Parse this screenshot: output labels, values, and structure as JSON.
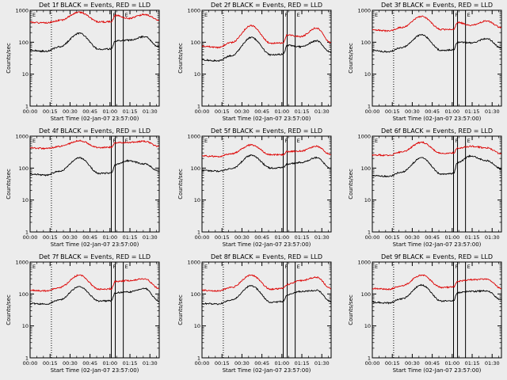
{
  "figure": {
    "x_axis_title": "Start Time (02-Jan-07 23:57:00)",
    "y_axis_title": "Counts/sec",
    "x_tick_labels": [
      "00:00",
      "00:15",
      "00:30",
      "00:45",
      "01:00",
      "01:15",
      "01:30"
    ],
    "y_tick_labels": [
      "1",
      "10",
      "100",
      "1000"
    ],
    "flag_labels": [
      "E",
      "F",
      "E"
    ]
  },
  "chart_data": [
    {
      "type": "line",
      "title": "Det 1f BLACK = Events, RED = LLD",
      "x": [
        0,
        12,
        22,
        37,
        52,
        61,
        64,
        74,
        86,
        97
      ],
      "xlim": [
        0,
        97
      ],
      "ylim": [
        1,
        1000
      ],
      "yscale": "log",
      "vlines": [
        16,
        61,
        64,
        70
      ],
      "series": [
        {
          "name": "Events",
          "color": "#000000",
          "values": [
            55,
            52,
            72,
            190,
            60,
            62,
            110,
            115,
            150,
            70
          ]
        },
        {
          "name": "LLD",
          "color": "#dd0000",
          "values": [
            420,
            400,
            480,
            870,
            430,
            440,
            700,
            560,
            740,
            500
          ]
        }
      ]
    },
    {
      "type": "line",
      "title": "Det 2f BLACK = Events, RED = LLD",
      "x": [
        0,
        12,
        22,
        37,
        52,
        61,
        64,
        74,
        86,
        97
      ],
      "xlim": [
        0,
        97
      ],
      "ylim": [
        1,
        1000
      ],
      "yscale": "log",
      "vlines": [
        16,
        61,
        64,
        70
      ],
      "series": [
        {
          "name": "Events",
          "color": "#000000",
          "values": [
            28,
            26,
            38,
            140,
            40,
            42,
            80,
            72,
            110,
            48
          ]
        },
        {
          "name": "LLD",
          "color": "#dd0000",
          "values": [
            75,
            68,
            98,
            330,
            92,
            96,
            170,
            150,
            280,
            95
          ]
        }
      ]
    },
    {
      "type": "line",
      "title": "Det 3f BLACK = Events, RED = LLD",
      "x": [
        0,
        12,
        22,
        37,
        52,
        61,
        64,
        74,
        86,
        97
      ],
      "xlim": [
        0,
        97
      ],
      "ylim": [
        1,
        1000
      ],
      "yscale": "log",
      "vlines": [
        16,
        61,
        64,
        70
      ],
      "series": [
        {
          "name": "Events",
          "color": "#000000",
          "values": [
            55,
            50,
            68,
            170,
            55,
            58,
            100,
            95,
            130,
            65
          ]
        },
        {
          "name": "LLD",
          "color": "#dd0000",
          "values": [
            240,
            225,
            290,
            640,
            250,
            255,
            420,
            340,
            460,
            290
          ]
        }
      ]
    },
    {
      "type": "line",
      "title": "Det 4f BLACK = Events, RED = LLD",
      "x": [
        0,
        12,
        22,
        37,
        52,
        61,
        64,
        74,
        86,
        97
      ],
      "xlim": [
        0,
        97
      ],
      "ylim": [
        1,
        1000
      ],
      "yscale": "log",
      "vlines": [
        16,
        61,
        64,
        70
      ],
      "series": [
        {
          "name": "Events",
          "color": "#000000",
          "values": [
            65,
            60,
            80,
            210,
            68,
            70,
            130,
            170,
            135,
            80
          ]
        },
        {
          "name": "LLD",
          "color": "#dd0000",
          "values": [
            430,
            410,
            480,
            720,
            440,
            450,
            620,
            640,
            690,
            470
          ]
        }
      ]
    },
    {
      "type": "line",
      "title": "Det 5f BLACK = Events, RED = LLD",
      "x": [
        0,
        12,
        22,
        37,
        52,
        61,
        64,
        74,
        86,
        97
      ],
      "xlim": [
        0,
        97
      ],
      "ylim": [
        1,
        1000
      ],
      "yscale": "log",
      "vlines": [
        16,
        61,
        64,
        70
      ],
      "series": [
        {
          "name": "Events",
          "color": "#000000",
          "values": [
            85,
            80,
            95,
            250,
            100,
            105,
            135,
            150,
            210,
            100
          ]
        },
        {
          "name": "LLD",
          "color": "#dd0000",
          "values": [
            240,
            230,
            280,
            530,
            260,
            265,
            330,
            340,
            480,
            260
          ]
        }
      ]
    },
    {
      "type": "line",
      "title": "Det 6f BLACK = Events, RED = LLD",
      "x": [
        0,
        12,
        22,
        37,
        52,
        61,
        64,
        74,
        86,
        97
      ],
      "xlim": [
        0,
        97
      ],
      "ylim": [
        1,
        1000
      ],
      "yscale": "log",
      "vlines": [
        16,
        61,
        64,
        70
      ],
      "series": [
        {
          "name": "Events",
          "color": "#000000",
          "values": [
            58,
            55,
            75,
            210,
            65,
            68,
            150,
            240,
            170,
            95
          ]
        },
        {
          "name": "LLD",
          "color": "#dd0000",
          "values": [
            260,
            250,
            320,
            640,
            290,
            300,
            420,
            480,
            430,
            280
          ]
        }
      ]
    },
    {
      "type": "line",
      "title": "Det 7f BLACK = Events, RED = LLD",
      "x": [
        0,
        12,
        22,
        37,
        52,
        61,
        64,
        74,
        86,
        97
      ],
      "xlim": [
        0,
        97
      ],
      "ylim": [
        1,
        1000
      ],
      "yscale": "log",
      "vlines": [
        16,
        61,
        64,
        70
      ],
      "series": [
        {
          "name": "Events",
          "color": "#000000",
          "values": [
            50,
            48,
            65,
            170,
            60,
            62,
            110,
            115,
            150,
            60
          ]
        },
        {
          "name": "LLD",
          "color": "#dd0000",
          "values": [
            130,
            125,
            160,
            390,
            140,
            145,
            250,
            260,
            300,
            150
          ]
        }
      ]
    },
    {
      "type": "line",
      "title": "Det 8f BLACK = Events, RED = LLD",
      "x": [
        0,
        12,
        22,
        37,
        52,
        61,
        64,
        74,
        86,
        97
      ],
      "xlim": [
        0,
        97
      ],
      "ylim": [
        1,
        1000
      ],
      "yscale": "log",
      "vlines": [
        16,
        61,
        64,
        70
      ],
      "series": [
        {
          "name": "Events",
          "color": "#000000",
          "values": [
            50,
            48,
            65,
            180,
            55,
            58,
            95,
            120,
            130,
            58
          ]
        },
        {
          "name": "LLD",
          "color": "#dd0000",
          "values": [
            130,
            125,
            160,
            390,
            140,
            150,
            200,
            260,
            330,
            150
          ]
        }
      ]
    },
    {
      "type": "line",
      "title": "Det 9f BLACK = Events, RED = LLD",
      "x": [
        0,
        12,
        22,
        37,
        52,
        61,
        64,
        74,
        86,
        97
      ],
      "xlim": [
        0,
        97
      ],
      "ylim": [
        1,
        1000
      ],
      "yscale": "log",
      "vlines": [
        16,
        61,
        64,
        70
      ],
      "series": [
        {
          "name": "Events",
          "color": "#000000",
          "values": [
            55,
            52,
            70,
            190,
            60,
            62,
            110,
            120,
            125,
            65
          ]
        },
        {
          "name": "LLD",
          "color": "#dd0000",
          "values": [
            150,
            140,
            180,
            390,
            160,
            165,
            250,
            280,
            290,
            150
          ]
        }
      ]
    }
  ]
}
